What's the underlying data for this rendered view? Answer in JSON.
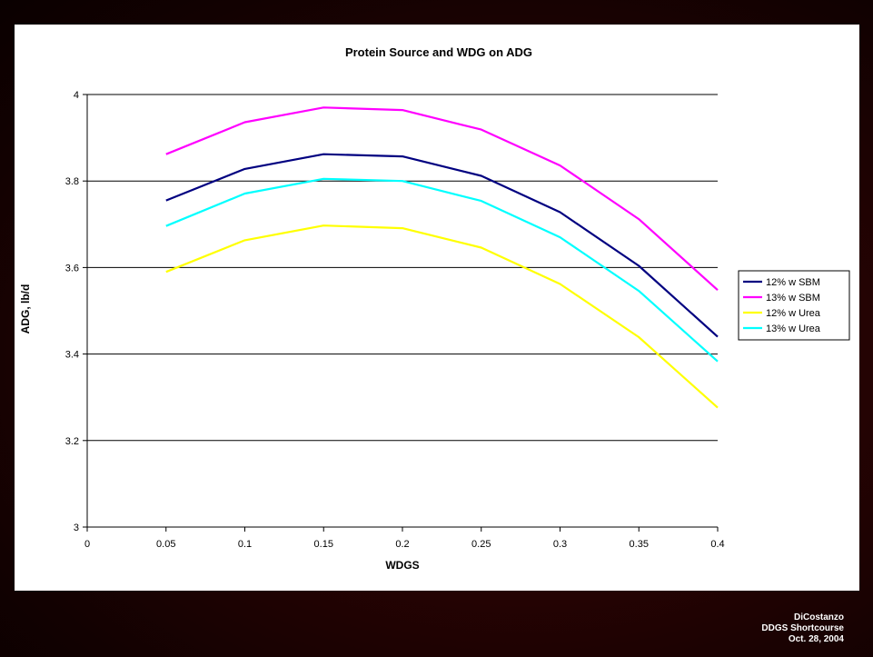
{
  "chart_data": {
    "type": "line",
    "title": "Protein Source and WDG on ADG",
    "xlabel": "WDGS",
    "ylabel": "ADG, lb/d",
    "x_ticks": [
      "0",
      "0.05",
      "0.1",
      "0.15",
      "0.2",
      "0.25",
      "0.3",
      "0.35",
      "0.4"
    ],
    "y_ticks": [
      "3",
      "3.2",
      "3.4",
      "3.6",
      "3.8",
      "4"
    ],
    "xlim": [
      0,
      0.4
    ],
    "ylim": [
      3,
      4
    ],
    "grid": "horizontal",
    "legend_position": "right",
    "x": [
      0.05,
      0.1,
      0.15,
      0.2,
      0.25,
      0.3,
      0.35,
      0.4
    ],
    "series": [
      {
        "name": "12% w SBM",
        "color": "#000080",
        "values": [
          3.755,
          3.828,
          3.862,
          3.857,
          3.812,
          3.728,
          3.604,
          3.44
        ]
      },
      {
        "name": "13% w SBM",
        "color": "#FF00FF",
        "values": [
          3.862,
          3.936,
          3.97,
          3.964,
          3.919,
          3.836,
          3.712,
          3.548
        ]
      },
      {
        "name": "12% w Urea",
        "color": "#FFFF00",
        "values": [
          3.59,
          3.663,
          3.697,
          3.691,
          3.646,
          3.562,
          3.439,
          3.276
        ]
      },
      {
        "name": "13% w Urea",
        "color": "#00FFFF",
        "values": [
          3.696,
          3.771,
          3.805,
          3.8,
          3.754,
          3.67,
          3.546,
          3.383
        ]
      }
    ]
  },
  "footer": {
    "author": "DiCostanzo",
    "event": "DDGS Shortcourse",
    "date": "Oct. 28, 2004"
  }
}
